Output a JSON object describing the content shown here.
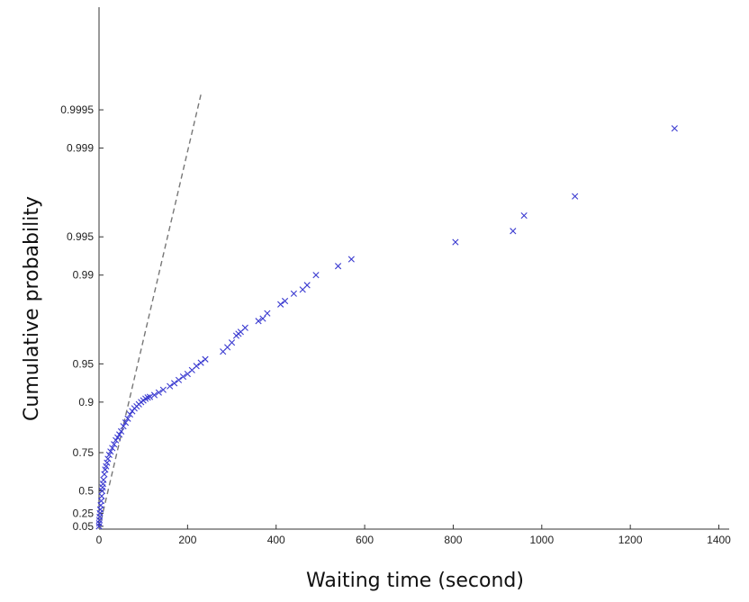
{
  "chart_data": {
    "type": "scatter",
    "xlabel": "Waiting time (second)",
    "ylabel": "Cumulative probability",
    "xlim": [
      0,
      1400
    ],
    "x_ticks": [
      0,
      200,
      400,
      600,
      800,
      1000,
      1200,
      1400
    ],
    "y_scale": "exponential probability plot",
    "y_ticks": [
      "0.05",
      "0.25",
      "0.5",
      "0.75",
      "0.9",
      "0.95",
      "0.99",
      "0.995",
      "0.999",
      "0.9995"
    ],
    "grid": false,
    "marker": "x",
    "colors": {
      "points": "#3a3ad0",
      "reference_line": "#777777"
    },
    "reference_line": {
      "style": "dashed",
      "x": [
        0,
        230
      ],
      "y": [
        0.0,
        0.99962
      ]
    },
    "series": [
      {
        "x": [
          0,
          0.5,
          1,
          1.5,
          2,
          3,
          4,
          5,
          6,
          7,
          8,
          9,
          10,
          12,
          14,
          16,
          18,
          20,
          23,
          26,
          30,
          34,
          38,
          42,
          46,
          50,
          55,
          60,
          65,
          70,
          75,
          80,
          85,
          90,
          95,
          100,
          105,
          110,
          115,
          125,
          135,
          145,
          160,
          170,
          180,
          190,
          200,
          210,
          220,
          230,
          240,
          280,
          290,
          300,
          310,
          315,
          320,
          330,
          360,
          370,
          380,
          410,
          420,
          440,
          460,
          470,
          490,
          540,
          570,
          805,
          935,
          960,
          1075,
          1300
        ],
        "y": [
          0.05,
          0.1,
          0.15,
          0.2,
          0.25,
          0.3,
          0.35,
          0.4,
          0.45,
          0.5,
          0.53,
          0.56,
          0.59,
          0.63,
          0.66,
          0.68,
          0.7,
          0.72,
          0.74,
          0.755,
          0.77,
          0.785,
          0.8,
          0.81,
          0.82,
          0.83,
          0.845,
          0.855,
          0.865,
          0.875,
          0.882,
          0.888,
          0.892,
          0.896,
          0.9,
          0.903,
          0.906,
          0.908,
          0.909,
          0.912,
          0.916,
          0.92,
          0.925,
          0.929,
          0.933,
          0.937,
          0.94,
          0.944,
          0.948,
          0.951,
          0.954,
          0.96,
          0.963,
          0.966,
          0.97,
          0.971,
          0.972,
          0.974,
          0.977,
          0.978,
          0.98,
          0.983,
          0.984,
          0.986,
          0.987,
          0.988,
          0.99,
          0.9915,
          0.9925,
          0.9945,
          0.9955,
          0.9966,
          0.9976,
          0.9993
        ]
      }
    ]
  }
}
